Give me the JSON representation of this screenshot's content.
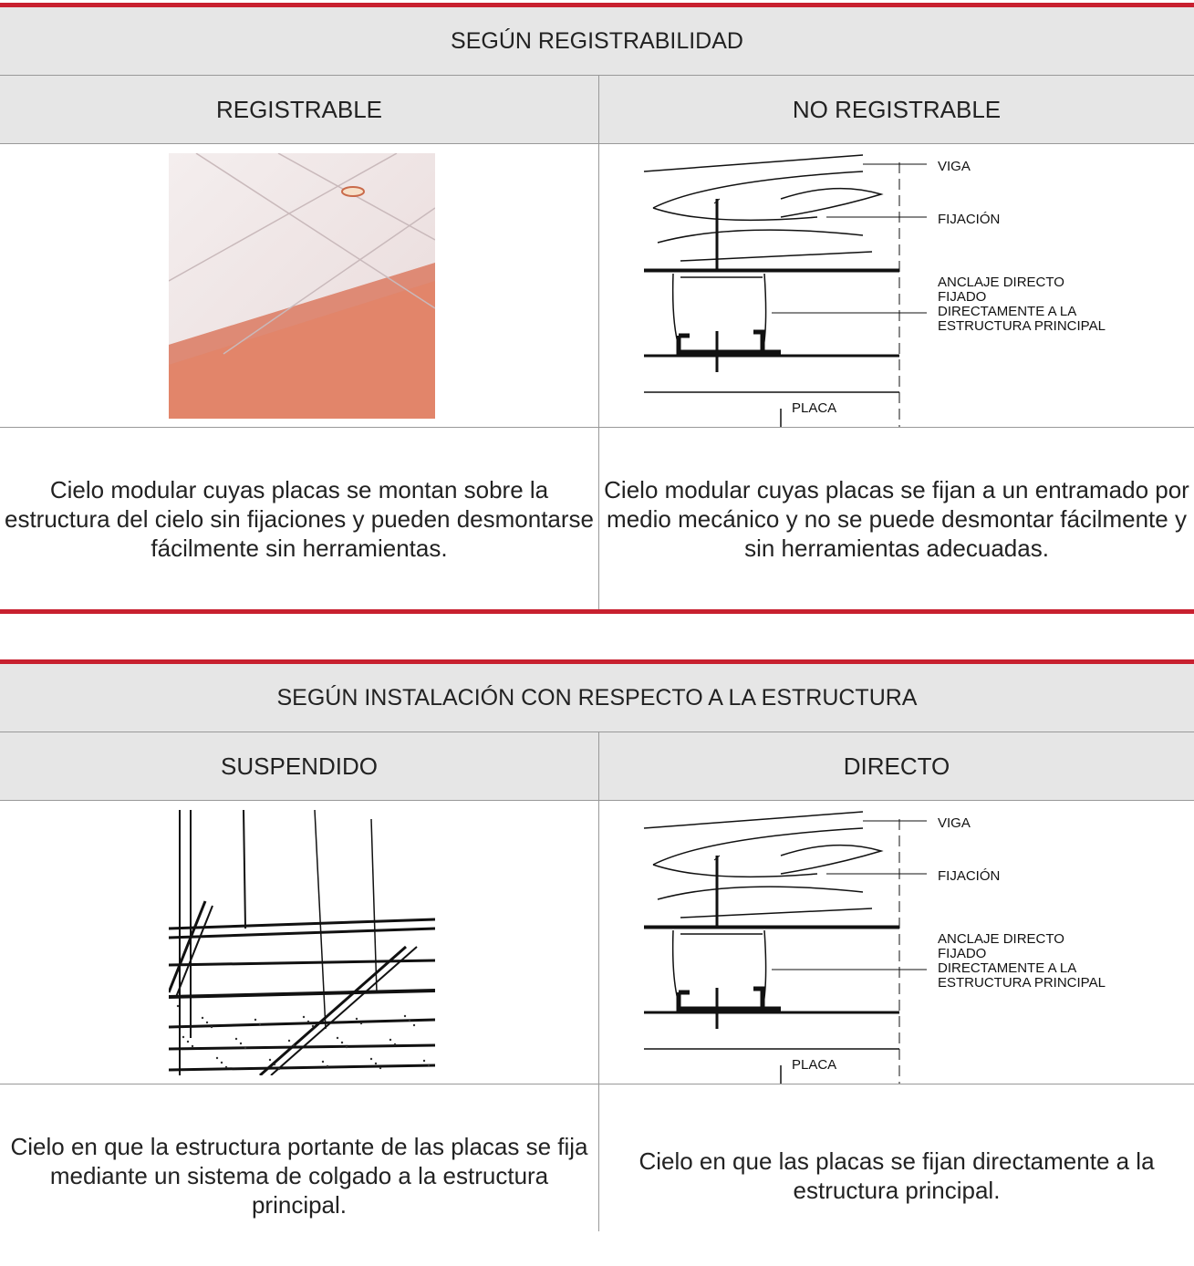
{
  "sections": [
    {
      "title": "SEGÚN REGISTRABILIDAD",
      "columns": [
        {
          "heading": "REGISTRABLE",
          "description": "Cielo modular cuyas placas se montan sobre la estructura del cielo sin fijaciones y pueden desmontarse fácilmente sin herramientas."
        },
        {
          "heading": "NO REGISTRABLE",
          "diagram_labels": [
            "VIGA",
            "FIJACIÓN",
            "ANCLAJE DIRECTO",
            "FIJADO",
            "DIRECTAMENTE A LA",
            "ESTRUCTURA PRINCIPAL",
            "PLACA"
          ],
          "description": "Cielo modular cuyas placas se fijan a un entramado por medio mecánico y no se puede desmontar fácilmente y sin herramientas adecuadas."
        }
      ]
    },
    {
      "title": "SEGÚN INSTALACIÓN CON RESPECTO A LA ESTRUCTURA",
      "columns": [
        {
          "heading": "SUSPENDIDO",
          "description": "Cielo en que la estructura portante de las placas se fija mediante un sistema de colgado a la estructura principal."
        },
        {
          "heading": "DIRECTO",
          "diagram_labels": [
            "VIGA",
            "FIJACIÓN",
            "ANCLAJE DIRECTO",
            "FIJADO",
            "DIRECTAMENTE A LA",
            "ESTRUCTURA PRINCIPAL",
            "PLACA"
          ],
          "description": "Cielo en que las placas se fijan directamente a la estructura principal."
        }
      ]
    }
  ]
}
